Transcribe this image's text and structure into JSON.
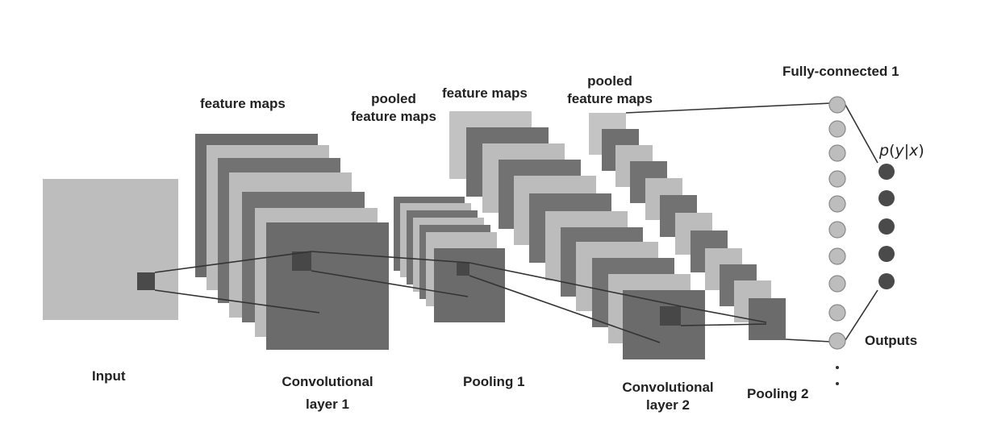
{
  "labels": {
    "input": "Input",
    "feature_maps_1": "feature maps",
    "pooled_feature_maps_1_l1": "pooled",
    "pooled_feature_maps_1_l2": "feature maps",
    "feature_maps_2": "feature maps",
    "pooled_feature_maps_2_l1": "pooled",
    "pooled_feature_maps_2_l2": "feature maps",
    "conv1_l1": "Convolutional",
    "conv1_l2": "layer 1",
    "pooling1": "Pooling 1",
    "conv2_l1": "Convolutional",
    "conv2_l2": "layer 2",
    "pooling2": "Pooling 2",
    "fc1": "Fully-connected 1",
    "outputs": "Outputs",
    "prob_p": "p",
    "prob_open": "(",
    "prob_y": "y",
    "prob_bar": "|",
    "prob_x": "x",
    "prob_close": ")"
  },
  "colors": {
    "light": "#b8b8b8",
    "dark": "#6b6b6b",
    "fc_node": "#bdbdbd",
    "output_node": "#4a4a4a",
    "line": "#333333"
  }
}
